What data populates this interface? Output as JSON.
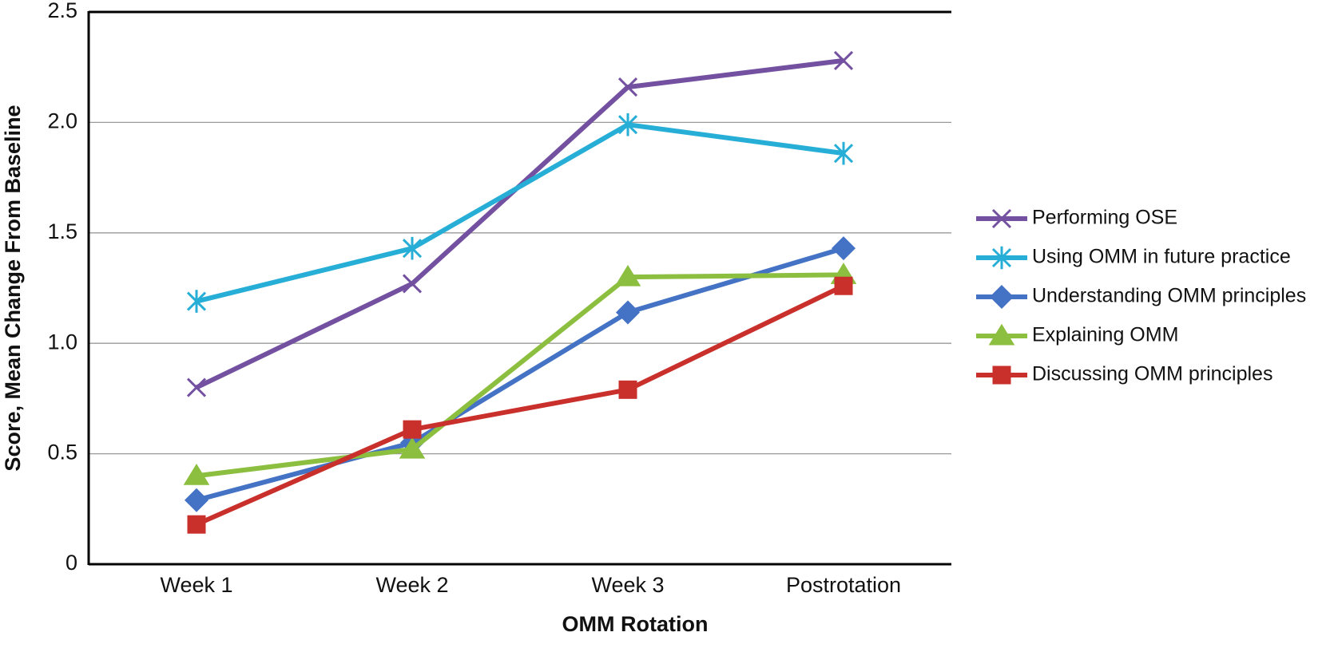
{
  "chart_data": {
    "type": "line",
    "x_label": "OMM Rotation",
    "y_label": "Score, Mean Change From Baseline",
    "categories": [
      "Week 1",
      "Week 2",
      "Week 3",
      "Postrotation"
    ],
    "series": [
      {
        "name": "Performing OSE",
        "color": "#7351a0",
        "marker": "x",
        "values": [
          0.8,
          1.27,
          2.16,
          2.28
        ]
      },
      {
        "name": "Using OMM in future practice",
        "color": "#27aed6",
        "marker": "asterisk",
        "values": [
          1.19,
          1.43,
          1.99,
          1.86
        ]
      },
      {
        "name": "Understanding OMM principles",
        "color": "#4472c4",
        "marker": "diamond",
        "values": [
          0.29,
          0.55,
          1.14,
          1.43
        ]
      },
      {
        "name": "Explaining OMM",
        "color": "#8cbf3f",
        "marker": "triangle",
        "values": [
          0.4,
          0.52,
          1.3,
          1.31
        ]
      },
      {
        "name": "Discussing OMM principles",
        "color": "#c9302c",
        "marker": "square",
        "values": [
          0.18,
          0.61,
          0.79,
          1.26
        ]
      }
    ],
    "ylim": [
      0,
      2.5
    ],
    "yticks": [
      0,
      0.5,
      {
        "value": 1,
        "label": "1.0"
      },
      1.5,
      {
        "value": 2,
        "label": "2.0"
      },
      2.5
    ],
    "grid": true,
    "legend": "right"
  }
}
